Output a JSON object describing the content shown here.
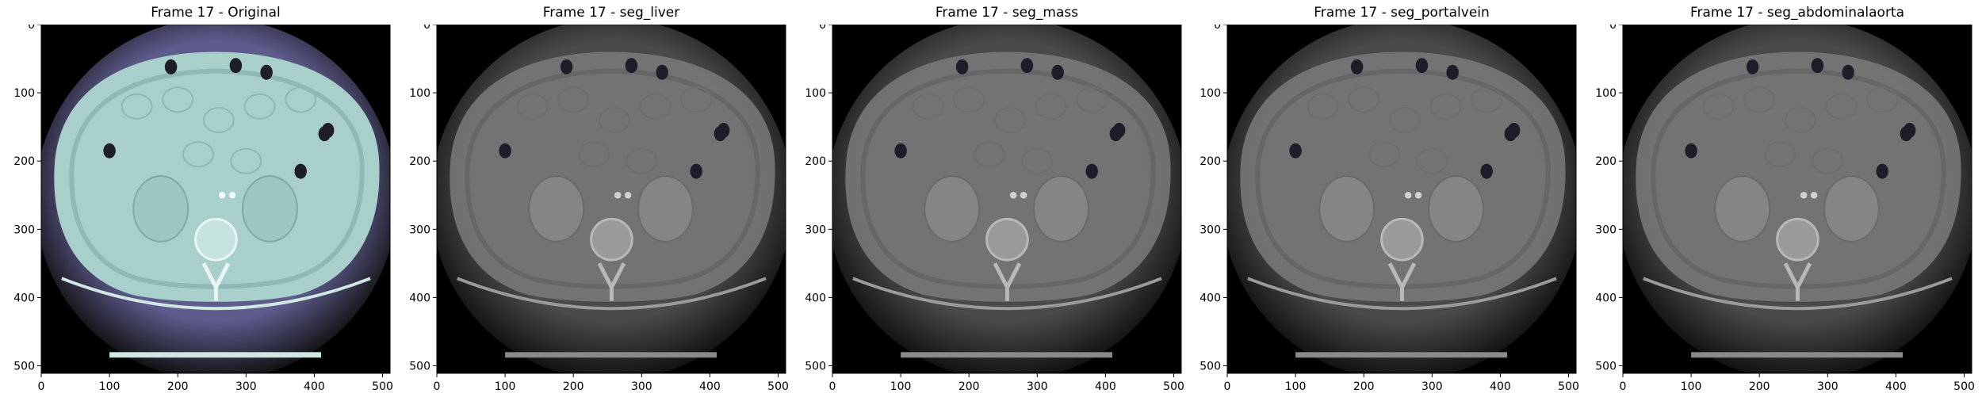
{
  "panels": [
    {
      "title": "Frame 17 - Original",
      "style": "original"
    },
    {
      "title": "Frame 17 - seg_liver",
      "style": "gray"
    },
    {
      "title": "Frame 17 - seg_mass",
      "style": "gray"
    },
    {
      "title": "Frame 17 - seg_portalvein",
      "style": "gray"
    },
    {
      "title": "Frame 17 - seg_abdominalaorta",
      "style": "gray"
    }
  ],
  "axes": {
    "x_ticks": [
      "0",
      "100",
      "200",
      "300",
      "400",
      "500"
    ],
    "y_ticks": [
      "0",
      "100",
      "200",
      "300",
      "400",
      "500"
    ],
    "x_range": [
      0,
      511
    ],
    "y_range": [
      0,
      511
    ]
  },
  "colors": {
    "original_body": "#a8cfc9",
    "original_rim": "#5d5c8d",
    "gray_body": "#7a7a7a",
    "gray_rim": "#4a4a4a",
    "background": "#000000"
  }
}
